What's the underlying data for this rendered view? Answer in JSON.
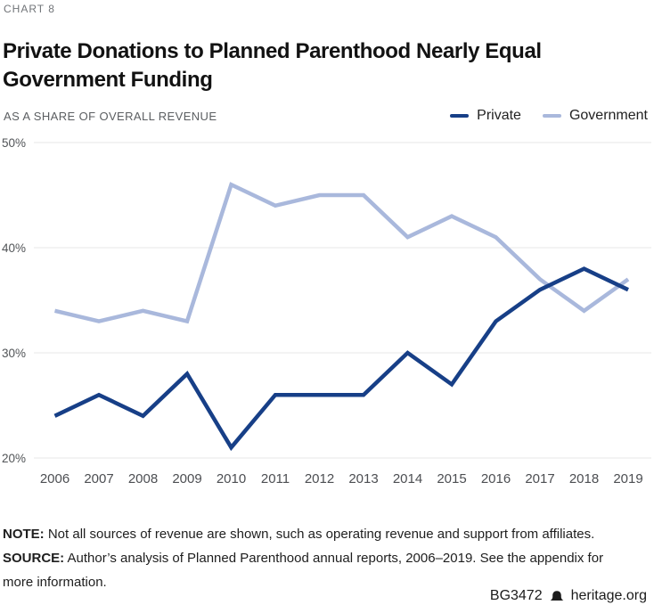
{
  "page": {
    "chart_label": "CHART 8",
    "title_line1": "Private Donations to Planned Parenthood Nearly Equal",
    "title_line2": "Government Funding",
    "subtitle": "AS A SHARE OF OVERALL REVENUE"
  },
  "legend": [
    {
      "label": "Private",
      "color": "#173f87"
    },
    {
      "label": "Government",
      "color": "#a9b8dc"
    }
  ],
  "chart_data": {
    "type": "line",
    "title": "Private Donations to Planned Parenthood Nearly Equal Government Funding",
    "subtitle": "AS A SHARE OF OVERALL REVENUE",
    "x": [
      2006,
      2007,
      2008,
      2009,
      2010,
      2011,
      2012,
      2013,
      2014,
      2015,
      2016,
      2017,
      2018,
      2019
    ],
    "series": [
      {
        "name": "Private",
        "color": "#173f87",
        "values": [
          24,
          26,
          24,
          28,
          21,
          26,
          26,
          26,
          30,
          27,
          33,
          36,
          38,
          36
        ]
      },
      {
        "name": "Government",
        "color": "#a9b8dc",
        "values": [
          34,
          33,
          34,
          33,
          46,
          44,
          45,
          45,
          41,
          43,
          41,
          37,
          34,
          37
        ]
      }
    ],
    "yticks": [
      50,
      40,
      30,
      20
    ],
    "ytick_suffix": "%",
    "ylim": [
      20,
      50
    ],
    "xlabel": "",
    "ylabel": "AS A SHARE OF OVERALL REVENUE",
    "grid": "horizontal",
    "legend_position": "top-right"
  },
  "notes": {
    "note_label": "NOTE:",
    "note_text": "Not all sources of revenue are shown, such as operating revenue and support from affiliates.",
    "source_label": "SOURCE:",
    "source_text": "Author’s analysis of Planned Parenthood annual reports, 2006–2019. See the appendix for more information."
  },
  "footer": {
    "report_id": "BG3472",
    "site": "heritage.org",
    "logo": "heritage-bell-icon"
  }
}
